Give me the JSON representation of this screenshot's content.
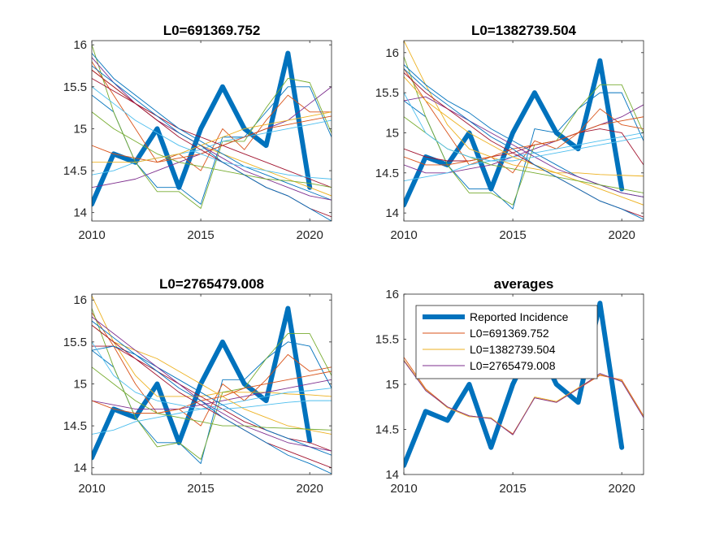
{
  "figure": {
    "background": "#ffffff"
  },
  "chart_data": [
    {
      "type": "line",
      "title": "L0=691369.752",
      "xlim": [
        2010,
        2021
      ],
      "ylim": [
        13.9,
        16.05
      ],
      "xticks": [
        2010,
        2015,
        2020
      ],
      "yticks": [
        14,
        14.5,
        15,
        15.5,
        16
      ],
      "grid": false,
      "reported": {
        "name": "Reported Incidence",
        "color": "#0072BD",
        "x": [
          2010,
          2011,
          2012,
          2013,
          2014,
          2015,
          2016,
          2017,
          2018,
          2019,
          2020
        ],
        "y": [
          14.1,
          14.7,
          14.6,
          15.0,
          14.3,
          15.0,
          15.5,
          15.0,
          14.8,
          15.9,
          14.3
        ]
      },
      "series": [
        {
          "color": "#0072BD",
          "y": [
            15.4,
            15.2,
            14.6,
            14.3,
            14.3,
            14.1,
            14.9,
            14.9,
            15.2,
            15.5,
            15.5,
            14.9
          ]
        },
        {
          "color": "#D95319",
          "y": [
            15.8,
            15.4,
            15.0,
            14.6,
            14.7,
            14.5,
            15.0,
            14.75,
            15.1,
            15.4,
            15.2,
            15.2
          ]
        },
        {
          "color": "#EDB120",
          "y": [
            15.7,
            15.5,
            15.3,
            15.1,
            14.95,
            14.8,
            14.7,
            14.6,
            14.5,
            14.4,
            14.3,
            14.2
          ]
        },
        {
          "color": "#7E2F8E",
          "y": [
            14.3,
            14.35,
            14.4,
            14.5,
            14.6,
            14.7,
            14.8,
            14.9,
            15.0,
            15.1,
            15.3,
            15.5
          ]
        },
        {
          "color": "#77AC30",
          "y": [
            16.0,
            15.2,
            14.6,
            14.25,
            14.25,
            14.05,
            14.85,
            14.85,
            15.25,
            15.6,
            15.55,
            14.95
          ]
        },
        {
          "color": "#4DBEEE",
          "y": [
            14.45,
            14.5,
            14.6,
            14.65,
            14.7,
            14.75,
            14.85,
            14.9,
            14.95,
            15.0,
            15.05,
            15.1
          ]
        },
        {
          "color": "#A2142F",
          "y": [
            15.6,
            15.45,
            15.3,
            15.15,
            15.0,
            14.9,
            14.8,
            14.7,
            14.6,
            14.5,
            14.4,
            14.3
          ]
        },
        {
          "color": "#0072BD",
          "y": [
            15.9,
            15.6,
            15.4,
            15.2,
            15.0,
            14.85,
            14.7,
            14.55,
            14.45,
            14.35,
            14.25,
            14.15
          ]
        },
        {
          "color": "#D95319",
          "y": [
            14.8,
            14.7,
            14.65,
            14.6,
            14.65,
            14.7,
            14.8,
            14.9,
            15.0,
            15.05,
            15.1,
            15.15
          ]
        },
        {
          "color": "#EDB120",
          "y": [
            14.6,
            14.6,
            14.6,
            14.65,
            14.7,
            14.8,
            14.9,
            15.0,
            15.05,
            15.1,
            15.15,
            15.2
          ]
        },
        {
          "color": "#7E2F8E",
          "y": [
            15.85,
            15.55,
            15.3,
            15.1,
            14.95,
            14.8,
            14.65,
            14.5,
            14.4,
            14.3,
            14.2,
            14.15
          ]
        },
        {
          "color": "#77AC30",
          "y": [
            15.2,
            15.0,
            14.85,
            14.7,
            14.6,
            14.55,
            14.5,
            14.45,
            14.4,
            14.38,
            14.35,
            14.3
          ]
        },
        {
          "color": "#4DBEEE",
          "y": [
            15.5,
            15.3,
            15.1,
            14.95,
            14.8,
            14.7,
            14.6,
            14.55,
            14.5,
            14.45,
            14.42,
            14.4
          ]
        },
        {
          "color": "#A2142F",
          "y": [
            15.7,
            15.5,
            15.3,
            15.1,
            14.9,
            14.75,
            14.6,
            14.45,
            14.3,
            14.2,
            14.05,
            13.95
          ]
        },
        {
          "color": "#0072BD",
          "y": [
            15.75,
            15.55,
            15.35,
            15.15,
            14.95,
            14.8,
            14.6,
            14.45,
            14.3,
            14.2,
            14.05,
            13.9
          ]
        }
      ]
    },
    {
      "type": "line",
      "title": "L0=1382739.504",
      "xlim": [
        2010,
        2021
      ],
      "ylim": [
        13.9,
        16.15
      ],
      "xticks": [
        2010,
        2015,
        2020
      ],
      "yticks": [
        14,
        14.5,
        15,
        15.5,
        16
      ],
      "grid": false,
      "reported": {
        "name": "Reported Incidence",
        "color": "#0072BD",
        "x": [
          2010,
          2011,
          2012,
          2013,
          2014,
          2015,
          2016,
          2017,
          2018,
          2019,
          2020
        ],
        "y": [
          14.1,
          14.7,
          14.6,
          15.0,
          14.3,
          15.0,
          15.5,
          15.0,
          14.8,
          15.9,
          14.3
        ]
      },
      "series": [
        {
          "color": "#0072BD",
          "y": [
            15.4,
            15.2,
            14.6,
            14.3,
            14.3,
            14.05,
            15.05,
            15.0,
            15.3,
            15.5,
            15.5,
            14.9
          ]
        },
        {
          "color": "#D95319",
          "y": [
            15.8,
            15.4,
            15.0,
            14.6,
            14.7,
            14.5,
            14.9,
            14.8,
            15.0,
            15.3,
            15.1,
            15.05
          ]
        },
        {
          "color": "#EDB120",
          "y": [
            16.15,
            15.6,
            15.1,
            14.8,
            14.7,
            14.6,
            14.55,
            14.5,
            14.5,
            14.48,
            14.47,
            14.46
          ]
        },
        {
          "color": "#7E2F8E",
          "y": [
            14.6,
            14.5,
            14.5,
            14.55,
            14.6,
            14.7,
            14.8,
            14.9,
            15.0,
            15.1,
            15.2,
            15.35
          ]
        },
        {
          "color": "#77AC30",
          "y": [
            15.95,
            15.2,
            14.6,
            14.25,
            14.25,
            14.1,
            14.85,
            14.9,
            15.3,
            15.6,
            15.6,
            15.0
          ]
        },
        {
          "color": "#4DBEEE",
          "y": [
            14.4,
            14.45,
            14.5,
            14.6,
            14.65,
            14.7,
            14.75,
            14.8,
            14.85,
            14.9,
            14.95,
            15.0
          ]
        },
        {
          "color": "#A2142F",
          "y": [
            14.8,
            14.7,
            14.65,
            14.65,
            14.7,
            14.75,
            14.85,
            14.9,
            15.0,
            15.05,
            15.0,
            14.6
          ]
        },
        {
          "color": "#0072BD",
          "y": [
            15.85,
            15.6,
            15.4,
            15.25,
            15.05,
            14.9,
            14.75,
            14.6,
            14.45,
            14.35,
            14.25,
            14.2
          ]
        },
        {
          "color": "#D95319",
          "y": [
            14.7,
            14.6,
            14.6,
            14.65,
            14.7,
            14.8,
            14.85,
            14.9,
            15.0,
            15.1,
            15.15,
            15.2
          ]
        },
        {
          "color": "#EDB120",
          "y": [
            15.7,
            15.4,
            15.2,
            15.0,
            14.85,
            14.7,
            14.6,
            14.5,
            14.4,
            14.3,
            14.2,
            14.1
          ]
        },
        {
          "color": "#7E2F8E",
          "y": [
            15.4,
            15.45,
            15.3,
            15.15,
            15.0,
            14.85,
            14.7,
            14.55,
            14.45,
            14.35,
            14.25,
            14.2
          ]
        },
        {
          "color": "#77AC30",
          "y": [
            15.2,
            15.0,
            14.8,
            14.7,
            14.6,
            14.55,
            14.5,
            14.45,
            14.4,
            14.35,
            14.3,
            14.25
          ]
        },
        {
          "color": "#4DBEEE",
          "y": [
            15.5,
            15.0,
            14.8,
            14.7,
            14.65,
            14.65,
            14.7,
            14.75,
            14.8,
            14.85,
            14.9,
            14.95
          ]
        },
        {
          "color": "#A2142F",
          "y": [
            15.75,
            15.5,
            15.3,
            15.1,
            14.9,
            14.75,
            14.6,
            14.45,
            14.3,
            14.15,
            14.05,
            13.95
          ]
        },
        {
          "color": "#0072BD",
          "y": [
            15.8,
            15.55,
            15.35,
            15.15,
            14.95,
            14.8,
            14.6,
            14.45,
            14.3,
            14.15,
            14.05,
            13.92
          ]
        }
      ]
    },
    {
      "type": "line",
      "title": "L0=2765479.008",
      "xlim": [
        2010,
        2021
      ],
      "ylim": [
        13.92,
        16.07
      ],
      "xticks": [
        2010,
        2015,
        2020
      ],
      "yticks": [
        14,
        14.5,
        15,
        15.5,
        16
      ],
      "grid": false,
      "reported": {
        "name": "Reported Incidence",
        "color": "#0072BD",
        "x": [
          2010,
          2011,
          2012,
          2013,
          2014,
          2015,
          2016,
          2017,
          2018,
          2019,
          2020
        ],
        "y": [
          14.12,
          14.7,
          14.6,
          15.0,
          14.3,
          15.0,
          15.5,
          15.0,
          14.8,
          15.9,
          14.32
        ]
      },
      "series": [
        {
          "color": "#0072BD",
          "y": [
            15.4,
            15.2,
            14.6,
            14.3,
            14.3,
            14.05,
            15.05,
            15.05,
            15.3,
            15.5,
            15.45,
            14.95
          ]
        },
        {
          "color": "#D95319",
          "y": [
            15.85,
            15.45,
            15.0,
            14.65,
            14.7,
            14.5,
            15.0,
            14.8,
            15.05,
            15.35,
            15.15,
            15.2
          ]
        },
        {
          "color": "#EDB120",
          "y": [
            16.05,
            15.5,
            15.1,
            14.85,
            14.85,
            14.85,
            14.9,
            14.9,
            14.9,
            14.88,
            14.87,
            14.85
          ]
        },
        {
          "color": "#7E2F8E",
          "y": [
            14.8,
            14.75,
            14.7,
            14.7,
            14.7,
            14.75,
            14.8,
            14.85,
            14.9,
            14.95,
            15.0,
            15.05
          ]
        },
        {
          "color": "#77AC30",
          "y": [
            15.9,
            15.2,
            14.6,
            14.25,
            14.3,
            14.1,
            14.9,
            14.95,
            15.3,
            15.6,
            15.6,
            15.1
          ]
        },
        {
          "color": "#4DBEEE",
          "y": [
            14.4,
            14.45,
            14.55,
            14.6,
            14.65,
            14.7,
            14.75,
            14.8,
            14.85,
            14.9,
            14.92,
            14.95
          ]
        },
        {
          "color": "#A2142F",
          "y": [
            15.45,
            15.45,
            15.3,
            15.15,
            15.0,
            14.85,
            14.7,
            14.55,
            14.45,
            14.35,
            14.3,
            14.2
          ]
        },
        {
          "color": "#0072BD",
          "y": [
            15.4,
            15.45,
            15.35,
            15.2,
            15.05,
            14.9,
            14.75,
            14.6,
            14.45,
            14.35,
            14.25,
            14.15
          ]
        },
        {
          "color": "#D95319",
          "y": [
            14.8,
            14.7,
            14.65,
            14.65,
            14.7,
            14.8,
            14.85,
            14.95,
            15.0,
            15.05,
            15.1,
            15.15
          ]
        },
        {
          "color": "#EDB120",
          "y": [
            15.7,
            15.5,
            15.4,
            15.3,
            15.15,
            15.0,
            14.85,
            14.7,
            14.6,
            14.5,
            14.45,
            14.4
          ]
        },
        {
          "color": "#7E2F8E",
          "y": [
            15.8,
            15.6,
            15.4,
            15.2,
            15.0,
            14.8,
            14.65,
            14.5,
            14.4,
            14.3,
            14.25,
            14.2
          ]
        },
        {
          "color": "#77AC30",
          "y": [
            15.2,
            15.0,
            14.8,
            14.65,
            14.6,
            14.55,
            14.5,
            14.5,
            14.48,
            14.47,
            14.46,
            14.45
          ]
        },
        {
          "color": "#4DBEEE",
          "y": [
            15.5,
            15.1,
            14.9,
            14.8,
            14.75,
            14.7,
            14.7,
            14.72,
            14.75,
            14.78,
            14.8,
            14.8
          ]
        },
        {
          "color": "#A2142F",
          "y": [
            15.7,
            15.5,
            15.3,
            15.1,
            14.9,
            14.75,
            14.6,
            14.45,
            14.3,
            14.2,
            14.1,
            14.0
          ]
        },
        {
          "color": "#0072BD",
          "y": [
            15.75,
            15.55,
            15.35,
            15.15,
            14.95,
            14.8,
            14.6,
            14.45,
            14.3,
            14.15,
            14.05,
            13.93
          ]
        }
      ]
    },
    {
      "type": "line",
      "title": "averages",
      "xlim": [
        2010,
        2021
      ],
      "ylim": [
        14,
        16
      ],
      "xticks": [
        2010,
        2015,
        2020
      ],
      "yticks": [
        14,
        14.5,
        15,
        15.5,
        16
      ],
      "grid": false,
      "legend_position": "top-left",
      "legend": [
        "Reported Incidence",
        "L0=691369.752",
        "L0=1382739.504",
        "L0=2765479.008"
      ],
      "reported": {
        "name": "Reported Incidence",
        "color": "#0072BD",
        "x": [
          2010,
          2011,
          2012,
          2013,
          2014,
          2015,
          2016,
          2017,
          2018,
          2019,
          2020
        ],
        "y": [
          14.1,
          14.7,
          14.6,
          15.0,
          14.3,
          15.0,
          15.5,
          15.0,
          14.8,
          15.9,
          14.3
        ]
      },
      "series": [
        {
          "name": "L0=691369.752",
          "color": "#D95319",
          "y": [
            15.3,
            14.95,
            14.75,
            14.65,
            14.62,
            14.45,
            14.85,
            14.8,
            14.95,
            15.1,
            15.05,
            14.65
          ]
        },
        {
          "name": "L0=1382739.504",
          "color": "#EDB120",
          "y": [
            15.27,
            14.94,
            14.74,
            14.64,
            14.63,
            14.44,
            14.86,
            14.81,
            14.96,
            15.11,
            15.04,
            14.64
          ]
        },
        {
          "name": "L0=2765479.008",
          "color": "#7E2F8E",
          "y": [
            15.26,
            14.93,
            14.75,
            14.65,
            14.62,
            14.44,
            14.85,
            14.8,
            14.95,
            15.12,
            15.03,
            14.63
          ]
        }
      ]
    }
  ]
}
